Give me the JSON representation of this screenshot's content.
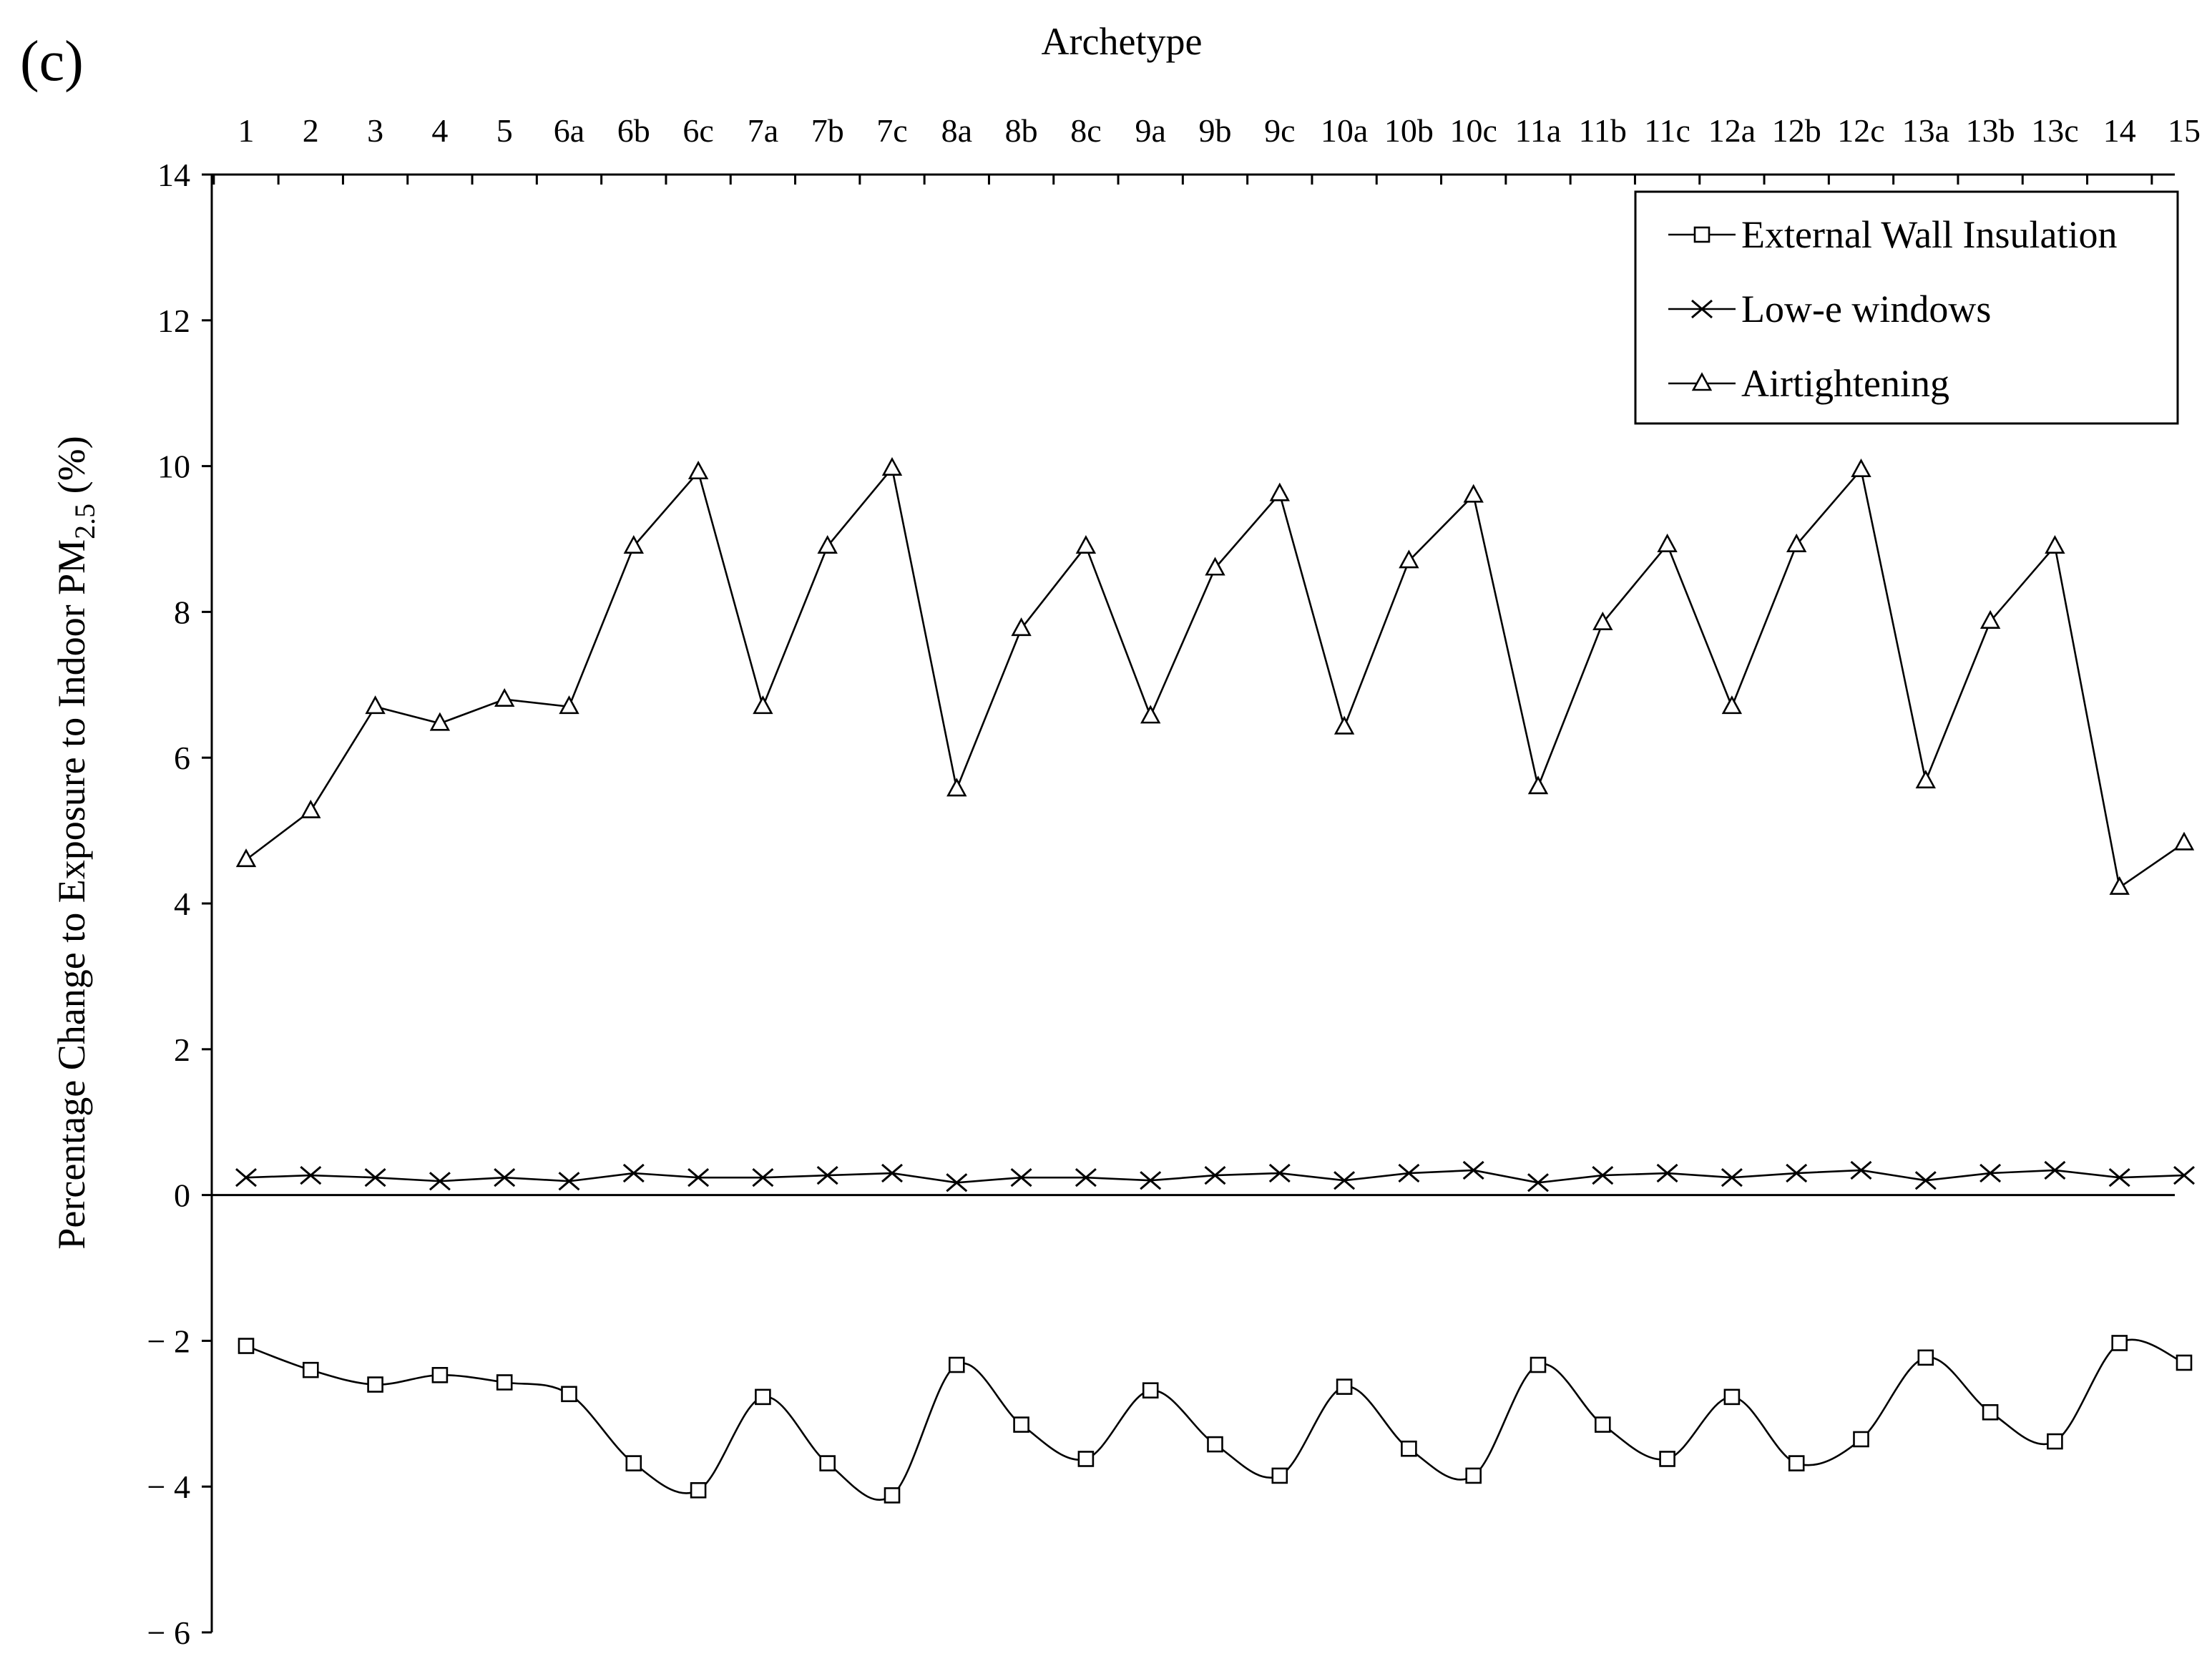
{
  "panel_label": "(c)",
  "chart_data": {
    "type": "line",
    "xlabel": "Archetype",
    "ylabel": "Percentage Change to Exposure to Indoor PM",
    "ylabel_subscript": "2.5",
    "ylabel_suffix": " (%)",
    "ylim": [
      -6,
      14
    ],
    "yticks": [
      -6,
      -4,
      -2,
      0,
      2,
      4,
      6,
      8,
      10,
      12,
      14
    ],
    "yticks_text": [
      "− 6",
      "− 4",
      "− 2",
      "0",
      "2",
      "4",
      "6",
      "8",
      "10",
      "12",
      "14"
    ],
    "categories": [
      "1",
      "2",
      "3",
      "4",
      "5",
      "6a",
      "6b",
      "6c",
      "7a",
      "7b",
      "7c",
      "8a",
      "8b",
      "8c",
      "9a",
      "9b",
      "9c",
      "10a",
      "10b",
      "10c",
      "11a",
      "11b",
      "11c",
      "12a",
      "12b",
      "12c",
      "13a",
      "13b",
      "13c",
      "14",
      "15"
    ],
    "legend_position": "top-right",
    "grid": false,
    "series": [
      {
        "name": "External Wall Insulation",
        "marker": "square",
        "smooth": true,
        "values": [
          -2.07,
          -2.4,
          -2.6,
          -2.47,
          -2.57,
          -2.73,
          -3.68,
          -4.05,
          -2.77,
          -3.68,
          -4.12,
          -2.33,
          -3.15,
          -3.62,
          -2.68,
          -3.42,
          -3.85,
          -2.63,
          -3.48,
          -3.85,
          -2.33,
          -3.15,
          -3.62,
          -2.77,
          -3.68,
          -3.35,
          -2.23,
          -2.98,
          -3.38,
          -2.03,
          -2.3
        ]
      },
      {
        "name": "Low-e windows",
        "marker": "x",
        "smooth": false,
        "values": [
          0.24,
          0.27,
          0.24,
          0.19,
          0.24,
          0.19,
          0.3,
          0.24,
          0.24,
          0.27,
          0.3,
          0.17,
          0.24,
          0.24,
          0.2,
          0.27,
          0.3,
          0.2,
          0.3,
          0.34,
          0.17,
          0.27,
          0.3,
          0.24,
          0.3,
          0.34,
          0.2,
          0.3,
          0.34,
          0.24,
          0.27
        ]
      },
      {
        "name": "Airtightening",
        "marker": "triangle",
        "smooth": false,
        "values": [
          4.6,
          5.27,
          6.7,
          6.47,
          6.8,
          6.7,
          8.9,
          9.92,
          6.7,
          8.9,
          9.97,
          5.57,
          7.77,
          8.9,
          6.57,
          8.6,
          9.62,
          6.42,
          8.7,
          9.6,
          5.6,
          7.85,
          8.92,
          6.7,
          8.92,
          9.95,
          5.68,
          7.87,
          8.9,
          4.22,
          4.83
        ]
      }
    ]
  }
}
